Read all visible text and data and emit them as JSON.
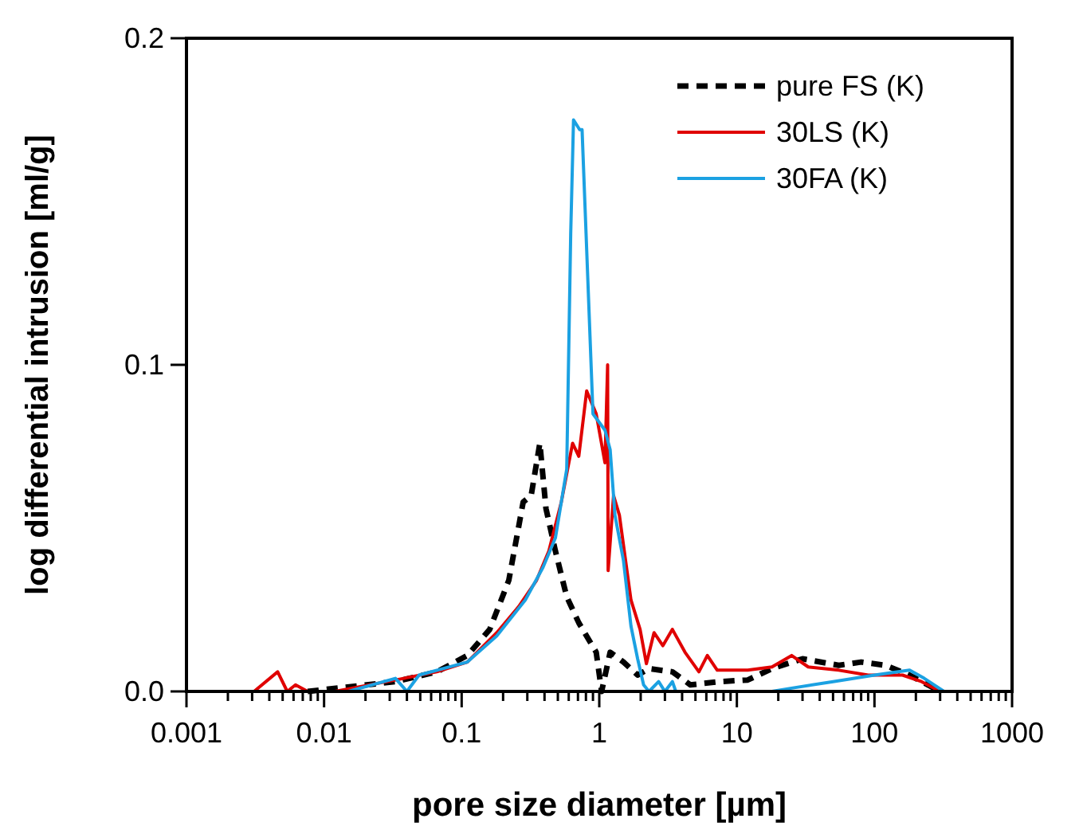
{
  "chart_data": {
    "type": "line",
    "xlabel": "pore size diameter [µm]",
    "ylabel": "log differential intrusion [ml/g]",
    "log": "x",
    "xlim": [
      0.001,
      1000
    ],
    "ylim": [
      0,
      0.2
    ],
    "xticks": [
      0.001,
      {
        "value": 0.002,
        "label": null
      },
      {
        "value": 0.003,
        "label": null
      },
      {
        "value": 0.004,
        "label": null
      },
      {
        "value": 0.005,
        "label": null
      },
      {
        "value": 0.006,
        "label": null
      },
      {
        "value": 0.007,
        "label": null
      },
      {
        "value": 0.008,
        "label": null
      },
      {
        "value": 0.009,
        "label": null
      },
      0.01,
      {
        "value": 0.02,
        "label": null
      },
      {
        "value": 0.03,
        "label": null
      },
      {
        "value": 0.04,
        "label": null
      },
      {
        "value": 0.05,
        "label": null
      },
      {
        "value": 0.06,
        "label": null
      },
      {
        "value": 0.07,
        "label": null
      },
      {
        "value": 0.08,
        "label": null
      },
      {
        "value": 0.09,
        "label": null
      },
      0.1,
      {
        "value": 0.2,
        "label": null
      },
      {
        "value": 0.3,
        "label": null
      },
      {
        "value": 0.4,
        "label": null
      },
      {
        "value": 0.5,
        "label": null
      },
      {
        "value": 0.6,
        "label": null
      },
      {
        "value": 0.7,
        "label": null
      },
      {
        "value": 0.8,
        "label": null
      },
      {
        "value": 0.9,
        "label": null
      },
      1,
      {
        "value": 2,
        "label": null
      },
      {
        "value": 3,
        "label": null
      },
      {
        "value": 4,
        "label": null
      },
      {
        "value": 5,
        "label": null
      },
      {
        "value": 6,
        "label": null
      },
      {
        "value": 7,
        "label": null
      },
      {
        "value": 8,
        "label": null
      },
      {
        "value": 9,
        "label": null
      },
      10,
      {
        "value": 20,
        "label": null
      },
      {
        "value": 30,
        "label": null
      },
      {
        "value": 40,
        "label": null
      },
      {
        "value": 50,
        "label": null
      },
      {
        "value": 60,
        "label": null
      },
      {
        "value": 70,
        "label": null
      },
      {
        "value": 80,
        "label": null
      },
      {
        "value": 90,
        "label": null
      },
      100,
      {
        "value": 200,
        "label": null
      },
      {
        "value": 300,
        "label": null
      },
      {
        "value": 400,
        "label": null
      },
      {
        "value": 500,
        "label": null
      },
      {
        "value": 600,
        "label": null
      },
      {
        "value": 700,
        "label": null
      },
      {
        "value": 800,
        "label": null
      },
      {
        "value": 900,
        "label": null
      },
      1000
    ],
    "yticks": [
      {
        "value": 0,
        "label": "0.0"
      },
      0.1,
      0.2
    ],
    "grid": false,
    "legend": "top right",
    "series": [
      {
        "name": "pure FS (K)",
        "color": "#000000",
        "line_style": "dashed",
        "x": [
          0.0076,
          0.033,
          0.066,
          0.11,
          0.16,
          0.22,
          0.28,
          0.32,
          0.37,
          0.41,
          0.48,
          0.58,
          0.71,
          0.95,
          1.04,
          1.2,
          1.5,
          1.9,
          2.3,
          3.4,
          4.6,
          7.5,
          12,
          18,
          30,
          55,
          80,
          120,
          180,
          300
        ],
        "values": [
          0,
          0.003,
          0.006,
          0.011,
          0.019,
          0.034,
          0.058,
          0.06,
          0.076,
          0.056,
          0.043,
          0.029,
          0.021,
          0.012,
          0,
          0.012,
          0.009,
          0.005,
          0.007,
          0.006,
          0.002,
          0.003,
          0.0035,
          0.007,
          0.01,
          0.008,
          0.009,
          0.008,
          0.005,
          0
        ]
      },
      {
        "name": "30LS (K)",
        "color": "#e00000",
        "line_style": "solid",
        "x": [
          0.0031,
          0.0046,
          0.0054,
          0.0062,
          0.0076,
          0.012,
          0.033,
          0.066,
          0.11,
          0.18,
          0.26,
          0.35,
          0.43,
          0.53,
          0.64,
          0.71,
          0.81,
          0.95,
          1.1,
          1.15,
          1.16,
          1.27,
          1.4,
          1.7,
          1.98,
          2.2,
          2.5,
          2.9,
          3.4,
          4.2,
          5.3,
          6.1,
          7.2,
          12,
          18,
          25,
          33,
          55,
          90,
          160,
          220,
          300
        ],
        "values": [
          0,
          0.006,
          0,
          0.002,
          0,
          0,
          0.0035,
          0.006,
          0.009,
          0.018,
          0.026,
          0.034,
          0.043,
          0.058,
          0.076,
          0.072,
          0.092,
          0.085,
          0.07,
          0.1,
          0.037,
          0.06,
          0.054,
          0.028,
          0.019,
          0.0085,
          0.018,
          0.014,
          0.019,
          0.012,
          0.006,
          0.011,
          0.0065,
          0.0065,
          0.0075,
          0.011,
          0.0075,
          0.0065,
          0.005,
          0.005,
          0.003,
          0
        ]
      },
      {
        "name": "30FA (K)",
        "color": "#1ba1e2",
        "line_style": "solid",
        "x": [
          0.015,
          0.033,
          0.04,
          0.049,
          0.11,
          0.18,
          0.29,
          0.39,
          0.48,
          0.58,
          0.62,
          0.65,
          0.72,
          0.75,
          0.9,
          1.1,
          1.2,
          1.3,
          1.5,
          1.7,
          1.9,
          2.1,
          2.3,
          2.7,
          3.0,
          3.4,
          3.6,
          18,
          25,
          50,
          100,
          180,
          230,
          320
        ],
        "values": [
          0,
          0.004,
          0,
          0.005,
          0.009,
          0.017,
          0.028,
          0.038,
          0.047,
          0.068,
          0.14,
          0.175,
          0.172,
          0.172,
          0.085,
          0.08,
          0.074,
          0.054,
          0.04,
          0.02,
          0.01,
          0.002,
          0,
          0.003,
          0,
          0.003,
          0,
          0,
          0.001,
          0.003,
          0.005,
          0.0065,
          0.004,
          0
        ]
      }
    ]
  }
}
